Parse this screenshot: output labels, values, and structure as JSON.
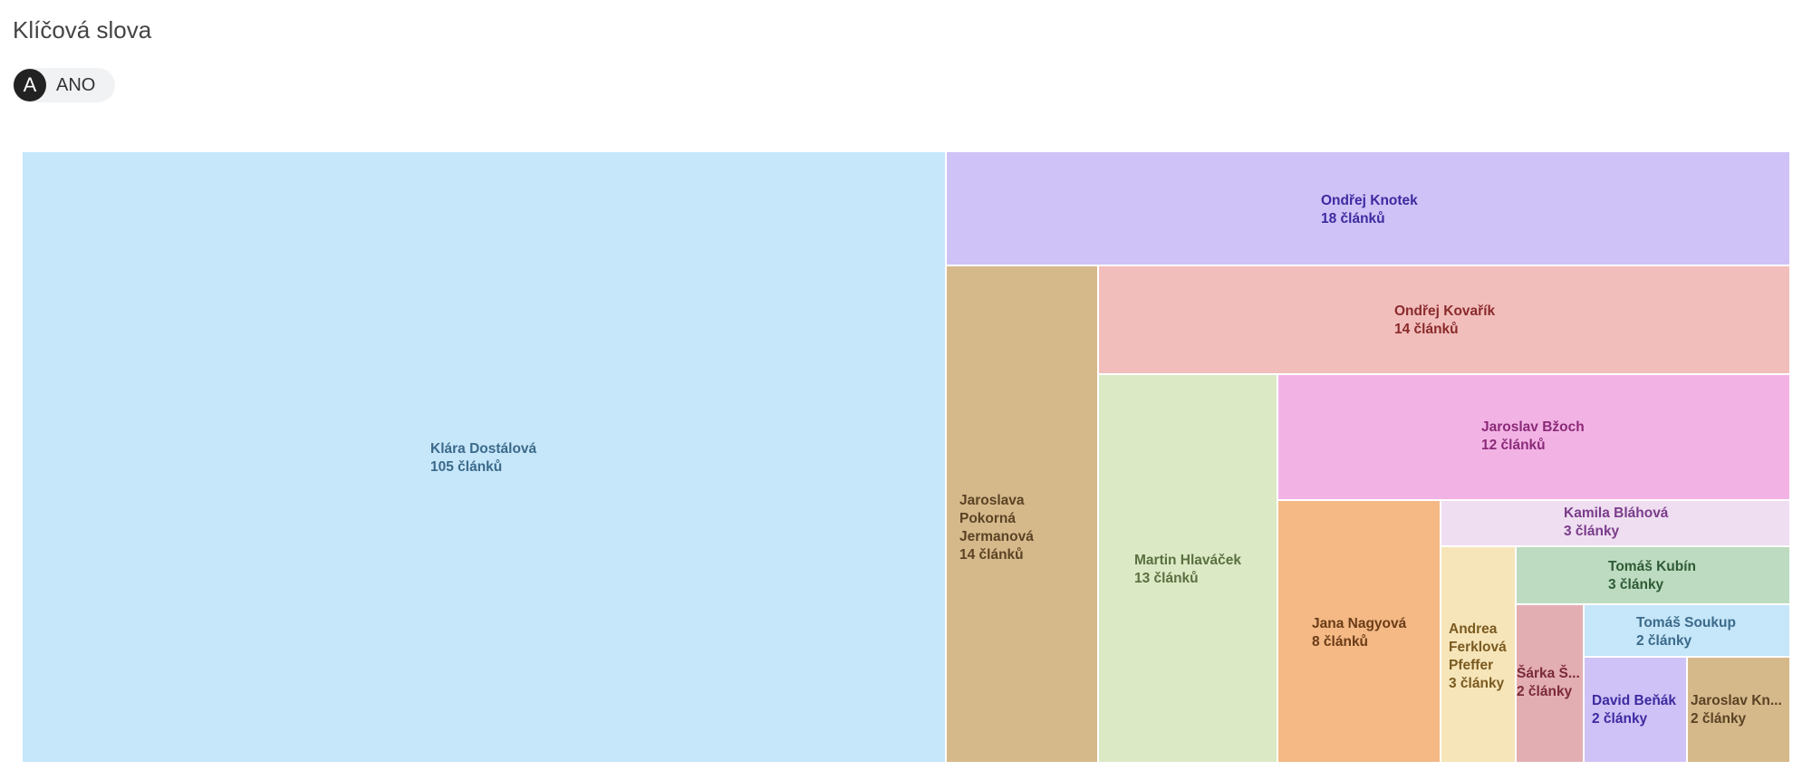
{
  "header": {
    "title": "Klíčová slova",
    "chip_avatar": "A",
    "chip_label": "ANO"
  },
  "chart_data": {
    "type": "treemap",
    "items": [
      {
        "name": "Klára Dostálová",
        "value": 105,
        "label": "105 článků",
        "color": "#c6e6f9",
        "text_color": "#3b6a8a"
      },
      {
        "name": "Ondřej Knotek",
        "value": 18,
        "label": "18 článků",
        "color": "#cfc2f6",
        "text_color": "#3d2aa0"
      },
      {
        "name": "Jaroslava Pokorná Jermanová",
        "value": 14,
        "label": "14 článků",
        "color": "#d6b98b",
        "text_color": "#5a4224"
      },
      {
        "name": "Ondřej Kovařík",
        "value": 14,
        "label": "14 článků",
        "color": "#f1bebc",
        "text_color": "#8a2a2a"
      },
      {
        "name": "Martin Hlaváček",
        "value": 13,
        "label": "13 článků",
        "color": "#dce9c5",
        "text_color": "#5a7040"
      },
      {
        "name": "Jaroslav Bžoch",
        "value": 12,
        "label": "12 článků",
        "color": "#f2b3e4",
        "text_color": "#8a2a78"
      },
      {
        "name": "Jana Nagyová",
        "value": 8,
        "label": "8 článků",
        "color": "#f4b985",
        "text_color": "#6a3c18"
      },
      {
        "name": "Kamila Bláhová",
        "value": 3,
        "label": "3 články",
        "color": "#efdef1",
        "text_color": "#7a3c8a"
      },
      {
        "name": "Andrea Ferklová Pfeffer",
        "value": 3,
        "label": "3 články",
        "color": "#f6e5b9",
        "text_color": "#7a5a20"
      },
      {
        "name": "Tomáš Kubín",
        "value": 3,
        "label": "3 články",
        "color": "#bddbc0",
        "text_color": "#2e5a36"
      },
      {
        "name": "Tomáš Soukup",
        "value": 2,
        "label": "2 články",
        "color": "#c6e6f9",
        "text_color": "#3b6a8a"
      },
      {
        "name": "Šárka Š...",
        "value": 2,
        "label": "2 články",
        "color": "#e3aeb2",
        "text_color": "#7a2a3a"
      },
      {
        "name": "David Beňák",
        "value": 2,
        "label": "2 články",
        "color": "#cfc2f6",
        "text_color": "#3d2aa0"
      },
      {
        "name": "Jaroslav Kn...",
        "value": 2,
        "label": "2 články",
        "color": "#d6b98b",
        "text_color": "#5a4224"
      }
    ]
  }
}
